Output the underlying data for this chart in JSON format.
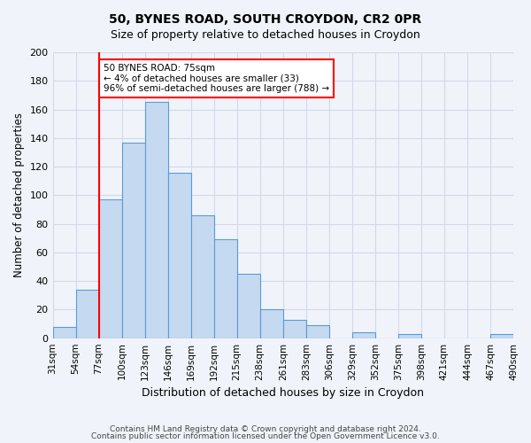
{
  "title": "50, BYNES ROAD, SOUTH CROYDON, CR2 0PR",
  "subtitle": "Size of property relative to detached houses in Croydon",
  "xlabel": "Distribution of detached houses by size in Croydon",
  "ylabel": "Number of detached properties",
  "bin_labels": [
    "31sqm",
    "54sqm",
    "77sqm",
    "100sqm",
    "123sqm",
    "146sqm",
    "169sqm",
    "192sqm",
    "215sqm",
    "238sqm",
    "261sqm",
    "283sqm",
    "306sqm",
    "329sqm",
    "352sqm",
    "375sqm",
    "398sqm",
    "421sqm",
    "444sqm",
    "467sqm",
    "490sqm"
  ],
  "bar_values": [
    8,
    34,
    97,
    137,
    165,
    116,
    86,
    69,
    45,
    20,
    13,
    9,
    0,
    4,
    0,
    3,
    0,
    0,
    0,
    3
  ],
  "bar_color": "#c5d9f0",
  "bar_edge_color": "#5b9bd5",
  "ylim": [
    0,
    200
  ],
  "yticks": [
    0,
    20,
    40,
    60,
    80,
    100,
    120,
    140,
    160,
    180,
    200
  ],
  "marker_label_line1": "50 BYNES ROAD: 75sqm",
  "marker_label_line2": "← 4% of detached houses are smaller (33)",
  "marker_label_line3": "96% of semi-detached houses are larger (788) →",
  "footer_line1": "Contains HM Land Registry data © Crown copyright and database right 2024.",
  "footer_line2": "Contains public sector information licensed under the Open Government Licence v3.0.",
  "bg_color": "#f0f4fa",
  "grid_color": "#d0d8e8"
}
